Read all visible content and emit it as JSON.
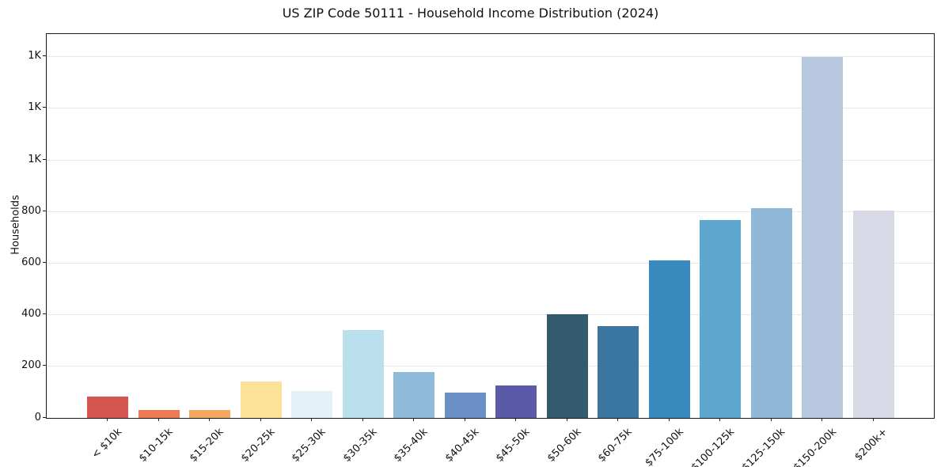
{
  "chart_data": {
    "type": "bar",
    "title": "US ZIP Code 50111 - Household Income Distribution (2024)",
    "xlabel": "",
    "ylabel": "Households",
    "categories": [
      "< $10k",
      "$10-15k",
      "$15-20k",
      "$20-25k",
      "$25-30k",
      "$30-35k",
      "$35-40k",
      "$40-45k",
      "$45-50k",
      "$50-60k",
      "$60-75k",
      "$75-100k",
      "$100-125k",
      "$125-150k",
      "$150-200k",
      "$200k+"
    ],
    "values": [
      82,
      30,
      30,
      140,
      105,
      340,
      178,
      98,
      126,
      402,
      356,
      612,
      766,
      812,
      1400,
      805
    ],
    "bar_colors": [
      "#d5564e",
      "#ed7a52",
      "#f2a95f",
      "#fbe298",
      "#e4f1f7",
      "#bcdfee",
      "#90bad9",
      "#6b90c6",
      "#5a5aa8",
      "#345a6d",
      "#3b76a0",
      "#3889bd",
      "#5da7cf",
      "#92b8d8",
      "#b8c8e0",
      "#d8d9e7"
    ],
    "ylim": [
      0,
      1488
    ],
    "ytick_values": [
      0,
      200,
      400,
      600,
      800,
      1000,
      1200,
      1400
    ],
    "ytick_labels": [
      "0",
      "200",
      "400",
      "600",
      "800",
      "1K",
      "1K",
      "1K"
    ],
    "grid": "horizontal",
    "grid_color": "#e8e8e8",
    "axis_color": "#1a1a1a",
    "background_color": "#ffffff",
    "legend": "none"
  }
}
